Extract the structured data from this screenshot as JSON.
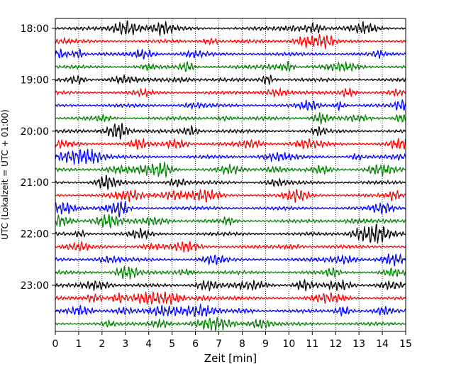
{
  "chart_data": {
    "type": "line",
    "title": "",
    "xlabel": "Zeit  [min]",
    "ylabel": "UTC (Lokalzeit = UTC + 01:00)",
    "xlim": [
      0,
      15
    ],
    "x_ticks": [
      "0",
      "1",
      "2",
      "3",
      "4",
      "5",
      "6",
      "7",
      "8",
      "9",
      "10",
      "11",
      "12",
      "13",
      "14",
      "15"
    ],
    "y_ticks": [
      "18:00",
      "19:00",
      "20:00",
      "21:00",
      "22:00",
      "23:00"
    ],
    "grid": "vertical-dotted",
    "trace_minutes": 15,
    "trace_count": 24,
    "trace_colors": [
      "#000000",
      "#ff0000",
      "#0000ff",
      "#008000"
    ],
    "traces": [
      {
        "start": "18:00",
        "color": "#000000"
      },
      {
        "start": "18:15",
        "color": "#ff0000"
      },
      {
        "start": "18:30",
        "color": "#0000ff"
      },
      {
        "start": "18:45",
        "color": "#008000"
      },
      {
        "start": "19:00",
        "color": "#000000"
      },
      {
        "start": "19:15",
        "color": "#ff0000"
      },
      {
        "start": "19:30",
        "color": "#0000ff"
      },
      {
        "start": "19:45",
        "color": "#008000"
      },
      {
        "start": "20:00",
        "color": "#000000"
      },
      {
        "start": "20:15",
        "color": "#ff0000"
      },
      {
        "start": "20:30",
        "color": "#0000ff"
      },
      {
        "start": "20:45",
        "color": "#008000"
      },
      {
        "start": "21:00",
        "color": "#000000"
      },
      {
        "start": "21:15",
        "color": "#ff0000"
      },
      {
        "start": "21:30",
        "color": "#0000ff"
      },
      {
        "start": "21:45",
        "color": "#008000"
      },
      {
        "start": "22:00",
        "color": "#000000"
      },
      {
        "start": "22:15",
        "color": "#ff0000"
      },
      {
        "start": "22:30",
        "color": "#0000ff"
      },
      {
        "start": "22:45",
        "color": "#008000"
      },
      {
        "start": "23:00",
        "color": "#000000"
      },
      {
        "start": "23:15",
        "color": "#ff0000"
      },
      {
        "start": "23:30",
        "color": "#0000ff"
      },
      {
        "start": "23:45",
        "color": "#008000"
      }
    ]
  }
}
